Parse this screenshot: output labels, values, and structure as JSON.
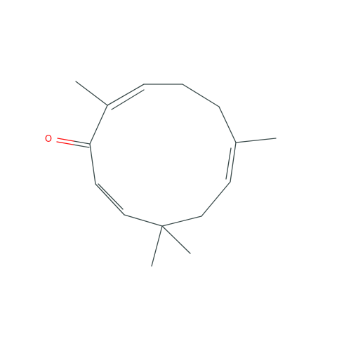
{
  "molecule": {
    "background": "#ffffff",
    "bond_color": "#3a4a4a",
    "atoms": [
      {
        "id": "O1",
        "element": "O",
        "label": "O",
        "color": "#ff0d0d"
      }
    ]
  }
}
